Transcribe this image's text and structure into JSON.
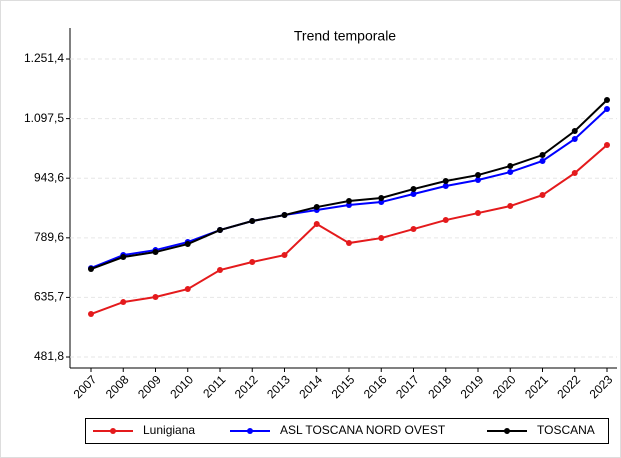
{
  "chart_data": {
    "type": "line",
    "title": "Trend temporale",
    "categories": [
      "2007",
      "2008",
      "2009",
      "2010",
      "2011",
      "2012",
      "2013",
      "2014",
      "2015",
      "2016",
      "2017",
      "2018",
      "2019",
      "2020",
      "2021",
      "2022",
      "2023"
    ],
    "series": [
      {
        "name": "Lunigiana",
        "color": "#e41a1c",
        "values": [
          592.8,
          623.7,
          636.7,
          657.3,
          706.4,
          727.1,
          745.1,
          825.2,
          776.1,
          789.0,
          812.3,
          835.5,
          853.6,
          871.7,
          900.1,
          956.9,
          1029.3
        ]
      },
      {
        "name": "ASL TOSCANA NORD OVEST",
        "color": "#0000ff",
        "values": [
          711.5,
          745.1,
          758.0,
          778.7,
          809.7,
          833.0,
          848.4,
          861.4,
          874.3,
          882.0,
          902.7,
          923.4,
          938.9,
          959.5,
          988.0,
          1044.8,
          1122.3
        ]
      },
      {
        "name": "TOSCANA",
        "color": "#000000",
        "values": [
          709.0,
          740.0,
          752.9,
          773.5,
          809.7,
          833.0,
          848.4,
          869.1,
          884.6,
          892.4,
          915.6,
          936.3,
          951.7,
          975.0,
          1003.4,
          1065.4,
          1145.5
        ]
      }
    ],
    "ylim": [
      453.4,
      1331.5
    ],
    "yticks": [
      {
        "value": 481.8,
        "label": "481,8"
      },
      {
        "value": 635.7,
        "label": "635,7"
      },
      {
        "value": 789.6,
        "label": "789,6"
      },
      {
        "value": 943.6,
        "label": "943,6"
      },
      {
        "value": 1097.5,
        "label": "1.097,5"
      },
      {
        "value": 1251.4,
        "label": "1.251,4"
      }
    ],
    "grid": true,
    "legend": "bottom"
  }
}
